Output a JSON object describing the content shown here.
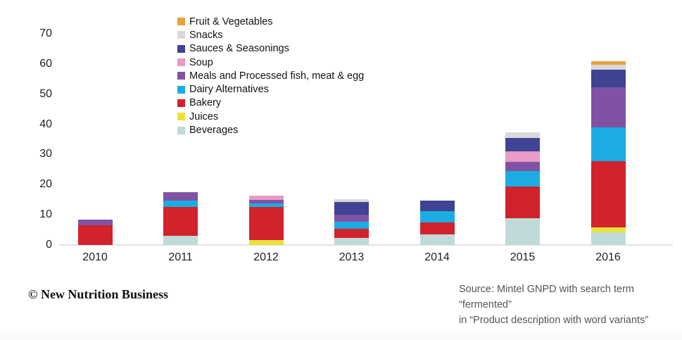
{
  "chart_data": {
    "type": "bar",
    "stacked": true,
    "title": "",
    "xlabel": "",
    "ylabel": "",
    "ylim": [
      0,
      70
    ],
    "yticks": [
      0,
      10,
      20,
      30,
      40,
      50,
      60,
      70
    ],
    "grid": false,
    "legend_position": "top-left",
    "categories": [
      "2010",
      "2011",
      "2012",
      "2013",
      "2014",
      "2015",
      "2016"
    ],
    "series": [
      {
        "name": "Beverages",
        "color": "#bfdad8",
        "values": [
          0,
          3.1,
          0,
          2.3,
          3.5,
          8.9,
          4.2
        ]
      },
      {
        "name": "Juices",
        "color": "#e8e23c",
        "values": [
          0,
          0,
          1.6,
          0,
          0,
          0,
          1.6
        ]
      },
      {
        "name": "Bakery",
        "color": "#d2222b",
        "values": [
          6.6,
          9.4,
          11.0,
          3.1,
          3.9,
          10.5,
          22.0
        ]
      },
      {
        "name": "Dairy Alternatives",
        "color": "#1bace3",
        "values": [
          0,
          2.3,
          1.2,
          2.3,
          3.9,
          5.1,
          11.2
        ]
      },
      {
        "name": "Meals and Processed fish, meat & egg",
        "color": "#8052a3",
        "values": [
          1.9,
          2.7,
          1.2,
          2.3,
          0,
          3.1,
          13.2
        ]
      },
      {
        "name": "Soup",
        "color": "#e79bc5",
        "values": [
          0,
          0,
          1.4,
          0,
          0,
          3.5,
          0
        ]
      },
      {
        "name": "Sauces & Seasonings",
        "color": "#3f4394",
        "values": [
          0,
          0,
          0,
          4.3,
          3.5,
          4.3,
          5.9
        ]
      },
      {
        "name": "Snacks",
        "color": "#d9d9d9",
        "values": [
          0,
          0,
          0,
          0.8,
          0,
          1.9,
          1.7
        ]
      },
      {
        "name": "Fruit & Vegetables",
        "color": "#e5a33c",
        "values": [
          0,
          0,
          0,
          0,
          0,
          0,
          1.2
        ]
      }
    ],
    "stack_order": "bottom-to-top",
    "totals": [
      8.5,
      17.5,
      16.4,
      15.1,
      14.8,
      37.3,
      61.0
    ]
  },
  "footer": {
    "copyright": "© New Nutrition Business",
    "source_line1": "Source: Mintel GNPD with search term “fermented”",
    "source_line2": "in “Product description with word variants”"
  }
}
